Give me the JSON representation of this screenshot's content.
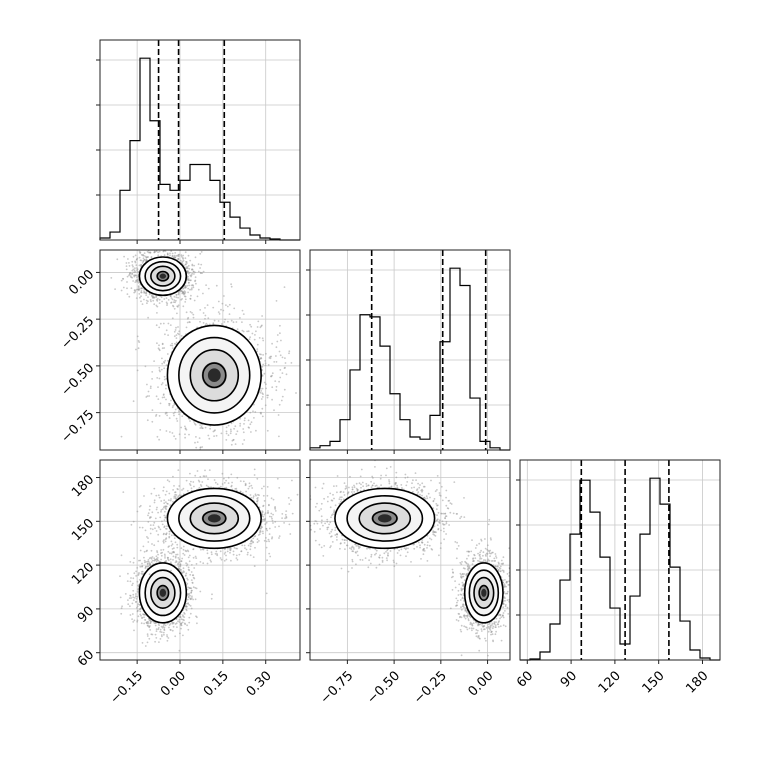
{
  "chart_data": [
    {
      "type": "histogram",
      "panel": "p0-marginal",
      "xlim": [
        -0.28,
        0.42
      ],
      "bin_start": -0.28,
      "bin_width": 0.035,
      "counts": [
        2,
        8,
        50,
        100,
        183,
        120,
        56,
        50,
        60,
        76,
        76,
        60,
        38,
        23,
        12,
        5,
        2,
        1,
        0,
        0
      ],
      "quantiles": [
        -0.075,
        -0.005,
        0.155
      ],
      "grid": true
    },
    {
      "type": "histogram",
      "panel": "p1-marginal",
      "xlim": [
        -0.95,
        0.12
      ],
      "bin_start": -0.95,
      "bin_width": 0.0535,
      "counts": [
        2,
        4,
        8,
        28,
        74,
        125,
        123,
        96,
        52,
        28,
        12,
        10,
        32,
        100,
        168,
        152,
        48,
        8,
        2,
        0
      ],
      "quantiles": [
        -0.62,
        -0.24,
        -0.01
      ],
      "grid": true
    },
    {
      "type": "histogram",
      "panel": "p2-marginal",
      "xlim": [
        55,
        192
      ],
      "bin_start": 55,
      "bin_width": 6.85,
      "counts": [
        0,
        1,
        8,
        36,
        80,
        126,
        180,
        148,
        103,
        52,
        16,
        64,
        126,
        182,
        156,
        93,
        39,
        10,
        2,
        0
      ],
      "quantiles": [
        97,
        127,
        157
      ],
      "grid": true
    },
    {
      "type": "scatter-density",
      "panel": "p0-vs-p1",
      "xlim": [
        -0.28,
        0.42
      ],
      "ylim": [
        -0.95,
        0.12
      ],
      "clusters": [
        {
          "cx": -0.06,
          "cy": -0.02,
          "sx": 0.04,
          "sy": 0.05,
          "n": 1800
        },
        {
          "cx": 0.12,
          "cy": -0.55,
          "sx": 0.08,
          "sy": 0.13,
          "n": 1800
        }
      ],
      "grid": true
    },
    {
      "type": "scatter-density",
      "panel": "p0-vs-p2",
      "xlim": [
        -0.28,
        0.42
      ],
      "ylim": [
        55,
        192
      ],
      "clusters": [
        {
          "cx": -0.06,
          "cy": 101,
          "sx": 0.04,
          "sy": 10,
          "n": 1800
        },
        {
          "cx": 0.12,
          "cy": 152,
          "sx": 0.08,
          "sy": 10,
          "n": 1800
        }
      ],
      "grid": true
    },
    {
      "type": "scatter-density",
      "panel": "p1-vs-p2",
      "xlim": [
        -0.95,
        0.12
      ],
      "ylim": [
        55,
        192
      ],
      "clusters": [
        {
          "cx": -0.02,
          "cy": 101,
          "sx": 0.05,
          "sy": 10,
          "n": 1800
        },
        {
          "cx": -0.55,
          "cy": 152,
          "sx": 0.13,
          "sy": 10,
          "n": 1800
        }
      ],
      "grid": true
    }
  ],
  "axes": {
    "x0_ticks": [
      -0.15,
      0.0,
      0.15,
      0.3
    ],
    "x0_tick_labels": [
      "−0.15",
      "0.00",
      "0.15",
      "0.30"
    ],
    "x1_ticks": [
      -0.75,
      -0.5,
      -0.25,
      0.0
    ],
    "x1_tick_labels": [
      "−0.75",
      "−0.50",
      "−0.25",
      "0.00"
    ],
    "x2_ticks": [
      60,
      90,
      120,
      150,
      180
    ],
    "x2_tick_labels": [
      "60",
      "90",
      "120",
      "150",
      "180"
    ],
    "y1_ticks": [
      0.0,
      -0.25,
      -0.5,
      -0.75
    ],
    "y1_tick_labels": [
      "0.00",
      "−0.25",
      "−0.50",
      "−0.75"
    ],
    "y2_ticks": [
      180,
      150,
      120,
      90,
      60
    ],
    "y2_tick_labels": [
      "180",
      "150",
      "120",
      "90",
      "60"
    ]
  }
}
